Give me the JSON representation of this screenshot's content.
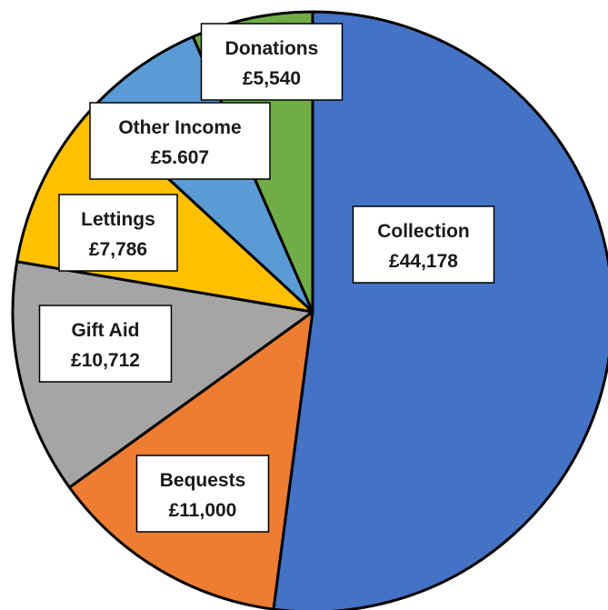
{
  "chart_data": {
    "type": "pie",
    "title": "",
    "start_angle_deg": 0,
    "direction": "clockwise",
    "slices": [
      {
        "category": "Collection",
        "value": 44178,
        "value_label": "£44,178",
        "color": "#4472C4"
      },
      {
        "category": "Bequests",
        "value": 11000,
        "value_label": "£11,000",
        "color": "#ED7D31"
      },
      {
        "category": "Gift Aid",
        "value": 10712,
        "value_label": "£10,712",
        "color": "#A5A5A5"
      },
      {
        "category": "Lettings",
        "value": 7786,
        "value_label": "£7,786",
        "color": "#FFC000"
      },
      {
        "category": "Other Income",
        "value": 5607,
        "value_label": "£5.607",
        "color": "#5B9BD5"
      },
      {
        "category": "Donations",
        "value": 5540,
        "value_label": "£5,540",
        "color": "#70AD47"
      }
    ]
  }
}
